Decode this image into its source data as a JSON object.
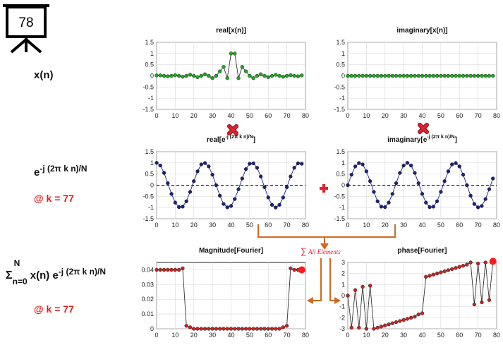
{
  "frame": {
    "number": "78"
  },
  "row_labels": {
    "xn": "x(n)",
    "kernel_base": "e",
    "kernel_sup": "-j (2π k n)/N",
    "k1": "@ k = 77",
    "sum_sigma": "Σ",
    "sum_upper": "N",
    "sum_lower": "n=0",
    "sum_mid": "x(n) e",
    "sum_sup": "-j (2π k n)/N",
    "k2": "@ k = 77"
  },
  "annotation": {
    "sum_text": "All Elements"
  },
  "colors": {
    "signal": "#22aa22",
    "kernel": "#1a237e",
    "result": "#cc2222",
    "arrow": "#d2691e",
    "op": "#e02030"
  },
  "chart_data": [
    {
      "type": "line",
      "title": "real[x(n)]",
      "xlim": [
        0,
        80
      ],
      "ylim": [
        -1.5,
        1.5
      ],
      "xticks": [
        "0",
        "10",
        "20",
        "30",
        "40",
        "50",
        "60",
        "70",
        "80"
      ],
      "yticks": [
        "1.5",
        "1",
        "0.5",
        "0",
        "-0.5",
        "-1",
        "-1.5"
      ],
      "x": [
        0,
        2,
        4,
        6,
        8,
        10,
        12,
        14,
        16,
        18,
        20,
        22,
        24,
        26,
        28,
        30,
        32,
        34,
        36,
        38,
        40,
        42,
        44,
        46,
        48,
        50,
        52,
        54,
        56,
        58,
        60,
        62,
        64,
        66,
        68,
        70,
        72,
        74,
        76,
        78
      ],
      "values": [
        0.02,
        0.02,
        0.0,
        -0.02,
        0.0,
        0.03,
        0.0,
        -0.04,
        0.0,
        0.05,
        0.0,
        -0.06,
        0.0,
        0.07,
        0.0,
        -0.1,
        0.0,
        0.2,
        0.4,
        -0.1,
        1.0,
        1.0,
        -0.1,
        0.4,
        0.2,
        0.0,
        -0.1,
        0.0,
        0.07,
        0.0,
        -0.06,
        0.0,
        0.05,
        0.0,
        -0.04,
        0.0,
        0.03,
        0.0,
        -0.02,
        0.02
      ]
    },
    {
      "type": "line",
      "title": "imaginary[x(n)]",
      "xlim": [
        0,
        80
      ],
      "ylim": [
        -1.5,
        1.5
      ],
      "xticks": [
        "0",
        "10",
        "20",
        "30",
        "40",
        "50",
        "60",
        "70",
        "80"
      ],
      "yticks": [
        "1.5",
        "1",
        "0.5",
        "0",
        "-0.5",
        "-1",
        "-1.5"
      ],
      "x": [
        0,
        2,
        4,
        6,
        8,
        10,
        12,
        14,
        16,
        18,
        20,
        22,
        24,
        26,
        28,
        30,
        32,
        34,
        36,
        38,
        40,
        42,
        44,
        46,
        48,
        50,
        52,
        54,
        56,
        58,
        60,
        62,
        64,
        66,
        68,
        70,
        72,
        74,
        76,
        78
      ],
      "values": [
        0,
        0,
        0,
        0,
        0,
        0,
        0,
        0,
        0,
        0,
        0,
        0,
        0,
        0,
        0,
        0,
        0,
        0,
        0,
        0,
        0,
        0,
        0,
        0,
        0,
        0,
        0,
        0,
        0,
        0,
        0,
        0,
        0,
        0,
        0,
        0,
        0,
        0,
        0,
        0
      ]
    },
    {
      "type": "line",
      "title": "real[e",
      "title_sup": "-j (2π k n)/N",
      "title_end": "]",
      "xlim": [
        0,
        80
      ],
      "ylim": [
        -1.5,
        1.5
      ],
      "xticks": [
        "0",
        "10",
        "20",
        "30",
        "40",
        "50",
        "60",
        "70",
        "80"
      ],
      "yticks": [
        "1.5",
        "1",
        "0.5",
        "0",
        "-0.5",
        "-1",
        "-1.5"
      ],
      "x": [
        0,
        2,
        4,
        6,
        8,
        10,
        12,
        14,
        16,
        18,
        20,
        22,
        24,
        26,
        28,
        30,
        32,
        34,
        36,
        38,
        40,
        42,
        44,
        46,
        48,
        50,
        52,
        54,
        56,
        58,
        60,
        62,
        64,
        66,
        68,
        70,
        72,
        74,
        76,
        78
      ],
      "values": [
        1.0,
        0.88,
        0.55,
        0.09,
        -0.39,
        -0.78,
        -0.98,
        -0.96,
        -0.72,
        -0.3,
        0.18,
        0.62,
        0.93,
        0.99,
        0.84,
        0.47,
        0.0,
        -0.47,
        -0.84,
        -0.99,
        -0.93,
        -0.62,
        -0.18,
        0.3,
        0.72,
        0.96,
        0.98,
        0.78,
        0.39,
        -0.09,
        -0.55,
        -0.88,
        -1.0,
        -0.88,
        -0.55,
        -0.09,
        0.39,
        0.78,
        0.98,
        0.96
      ]
    },
    {
      "type": "line",
      "title": "imaginary[e",
      "title_sup": "-j (2π k n)/N",
      "title_end": "]",
      "xlim": [
        0,
        80
      ],
      "ylim": [
        -1.5,
        1.5
      ],
      "xticks": [
        "0",
        "10",
        "20",
        "30",
        "40",
        "50",
        "60",
        "70",
        "80"
      ],
      "yticks": [
        "1.5",
        "1",
        "0.5",
        "0",
        "-0.5",
        "-1",
        "-1.5"
      ],
      "x": [
        0,
        2,
        4,
        6,
        8,
        10,
        12,
        14,
        16,
        18,
        20,
        22,
        24,
        26,
        28,
        30,
        32,
        34,
        36,
        38,
        40,
        42,
        44,
        46,
        48,
        50,
        52,
        54,
        56,
        58,
        60,
        62,
        64,
        66,
        68,
        70,
        72,
        74,
        76,
        78
      ],
      "values": [
        0.0,
        0.47,
        0.84,
        0.99,
        0.93,
        0.62,
        0.18,
        -0.3,
        -0.72,
        -0.96,
        -0.98,
        -0.78,
        -0.39,
        0.09,
        0.55,
        0.88,
        1.0,
        0.88,
        0.55,
        0.09,
        -0.39,
        -0.78,
        -0.98,
        -0.96,
        -0.72,
        -0.3,
        0.18,
        0.62,
        0.93,
        0.99,
        0.84,
        0.47,
        0.0,
        -0.47,
        -0.84,
        -0.99,
        -0.93,
        -0.62,
        -0.18,
        0.3
      ]
    },
    {
      "type": "line",
      "title": "Magnitude[Fourier]",
      "xlim": [
        0,
        80
      ],
      "ylim": [
        0,
        0.045
      ],
      "xticks": [
        "0",
        "10",
        "20",
        "30",
        "40",
        "50",
        "60",
        "70",
        "80"
      ],
      "yticks": [
        "0.04",
        "0.03",
        "0.02",
        "0.01",
        "0"
      ],
      "x": [
        0,
        2,
        4,
        6,
        8,
        10,
        12,
        14,
        16,
        18,
        20,
        22,
        24,
        26,
        28,
        30,
        32,
        34,
        36,
        38,
        40,
        42,
        44,
        46,
        48,
        50,
        52,
        54,
        56,
        58,
        60,
        62,
        64,
        66,
        68,
        70,
        72,
        74,
        76,
        78
      ],
      "values": [
        0.04,
        0.04,
        0.04,
        0.04,
        0.04,
        0.04,
        0.04,
        0.041,
        0.002,
        0.001,
        0.0,
        0.0,
        0.0,
        0.0,
        0.0,
        0.0,
        0.0,
        0.0,
        0.0,
        0.0,
        0.0,
        0.0,
        0.0,
        0.0,
        0.0,
        0.0,
        0.0,
        0.0,
        0.0,
        0.0,
        0.0,
        0.0,
        0.0,
        0.0,
        0.001,
        0.002,
        0.041,
        0.04,
        0.04,
        0.04
      ],
      "highlight": {
        "x": 78,
        "y": 0.04
      }
    },
    {
      "type": "line",
      "title": "phase[Fourier]",
      "xlim": [
        0,
        80
      ],
      "ylim": [
        -3,
        3
      ],
      "xticks": [
        "0",
        "10",
        "20",
        "30",
        "40",
        "50",
        "60",
        "70",
        "80"
      ],
      "yticks": [
        "3",
        "2",
        "1",
        "0",
        "-1",
        "-2",
        "-3"
      ],
      "x": [
        0,
        2,
        4,
        6,
        8,
        10,
        12,
        14,
        16,
        18,
        20,
        22,
        24,
        26,
        28,
        30,
        32,
        34,
        36,
        38,
        40,
        42,
        44,
        46,
        48,
        50,
        52,
        54,
        56,
        58,
        60,
        62,
        64,
        66,
        68,
        70,
        72,
        74,
        76,
        78
      ],
      "values": [
        0.0,
        -2.9,
        0.5,
        -2.9,
        0.8,
        -3.0,
        0.9,
        -3.0,
        -2.9,
        -2.8,
        -2.7,
        -2.6,
        -2.5,
        -2.4,
        -2.3,
        -2.2,
        -2.1,
        -2.0,
        -1.9,
        -1.7,
        -1.6,
        1.7,
        1.8,
        1.9,
        2.0,
        2.1,
        2.2,
        2.3,
        2.4,
        2.5,
        2.6,
        2.7,
        2.8,
        3.0,
        -0.8,
        2.9,
        -0.6,
        3.0,
        -0.4,
        3.1
      ],
      "highlight": {
        "x": 78,
        "y": 3.1
      }
    }
  ]
}
